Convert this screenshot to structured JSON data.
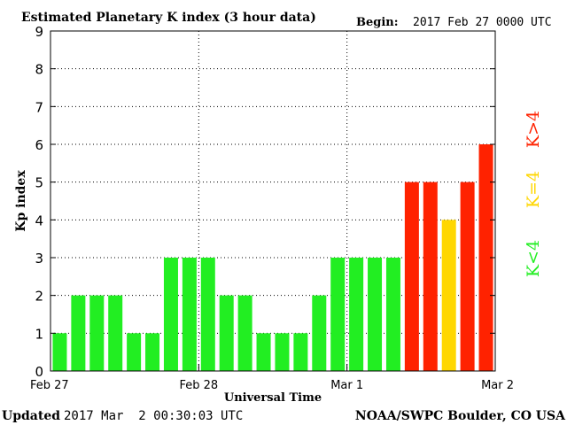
{
  "header": {
    "title": "Estimated Planetary K index (3 hour data)",
    "begin_label": "Begin:",
    "begin_value": "2017 Feb 27 0000 UTC"
  },
  "footer": {
    "updated_label": "Updated",
    "updated_value": "2017 Mar  2 00:30:03 UTC",
    "source": "NOAA/SWPC Boulder, CO USA"
  },
  "legend": {
    "low": "K<4",
    "mid": "K=4",
    "high": "K>4"
  },
  "colors": {
    "low": "#22ee22",
    "mid": "#ffd700",
    "high": "#ff2200",
    "axis": "#000000",
    "grid": "#000000"
  },
  "chart_data": {
    "type": "bar",
    "title": "Estimated Planetary K index (3 hour data)",
    "xlabel": "Universal Time",
    "ylabel": "Kp index",
    "ylim": [
      0,
      9
    ],
    "yticks": [
      0,
      1,
      2,
      3,
      4,
      5,
      6,
      7,
      8,
      9
    ],
    "x_tick_labels": [
      "Feb 27",
      "Feb 28",
      "Mar 1",
      "Mar 2"
    ],
    "grid": "dotted",
    "values": [
      1,
      2,
      2,
      2,
      1,
      1,
      3,
      3,
      3,
      2,
      2,
      1,
      1,
      1,
      2,
      3,
      3,
      3,
      3,
      5,
      5,
      4,
      5,
      6
    ],
    "value_labels": [
      "1",
      "2",
      "2",
      "2",
      "1",
      "1",
      "3",
      "3",
      "3",
      "2",
      "2",
      "1",
      "1",
      "1",
      "2",
      "3",
      "3",
      "3",
      "3",
      "5",
      "5",
      "4",
      "5",
      "6"
    ]
  }
}
